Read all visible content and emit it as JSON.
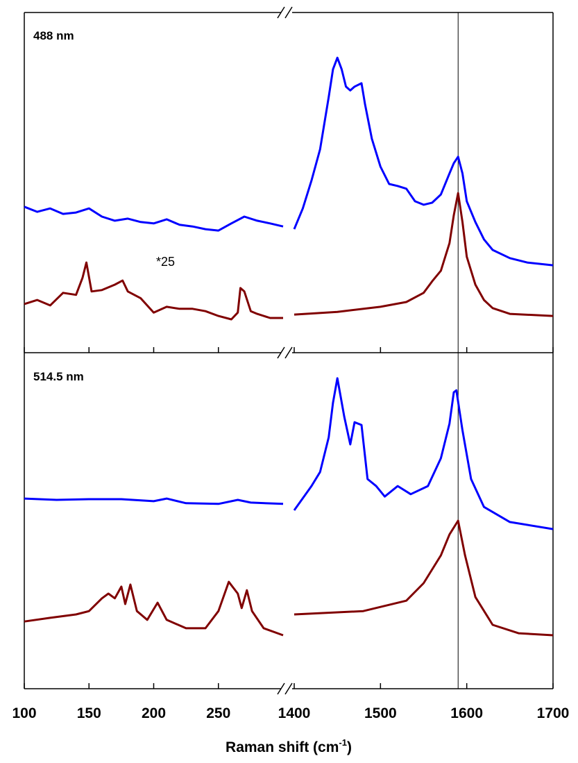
{
  "chart_data": {
    "type": "line",
    "x_segments": [
      {
        "xlim": [
          100,
          300
        ],
        "xticks": [
          100,
          150,
          200,
          250
        ]
      },
      {
        "xlim": [
          1400,
          1700
        ],
        "xticks": [
          1400,
          1500,
          1600,
          1700
        ]
      }
    ],
    "xlabel_parts": [
      "Raman shift (cm",
      "-1",
      ")"
    ],
    "reference_line_x": 1590,
    "panels": [
      {
        "label": "488 nm",
        "annotation": "*25",
        "ylim": [
          0,
          100
        ],
        "series": [
          {
            "color": "#0000ff",
            "x": [
              100,
              110,
              120,
              130,
              140,
              150,
              160,
              170,
              180,
              190,
              200,
              210,
              220,
              230,
              240,
              250,
              260,
              270,
              280,
              290,
              300
            ],
            "values": [
              42.9,
              41.4,
              42.4,
              40.8,
              41.2,
              42.4,
              40,
              38.8,
              39.4,
              38.4,
              38,
              39.2,
              37.6,
              37.1,
              36.3,
              35.9,
              38,
              40,
              38.8,
              38,
              37.1
            ]
          },
          {
            "color": "#800000",
            "x": [
              100,
              110,
              120,
              130,
              140,
              145,
              148,
              152,
              160,
              170,
              176,
              180,
              190,
              200,
              210,
              220,
              230,
              240,
              250,
              260,
              265,
              267,
              270,
              275,
              280,
              290,
              300
            ],
            "values": [
              14.3,
              15.5,
              13.9,
              17.6,
              17,
              22,
              26.5,
              18,
              18.4,
              20,
              21.2,
              18,
              16,
              11.8,
              13.5,
              12.9,
              12.9,
              12.2,
              10.8,
              9.8,
              11.8,
              19,
              18,
              12.2,
              11.4,
              10.2,
              10.2
            ]
          },
          {
            "color": "#0000ff",
            "x": [
              1400,
              1410,
              1420,
              1430,
              1440,
              1445,
              1450,
              1455,
              1460,
              1465,
              1470,
              1478,
              1482,
              1490,
              1500,
              1510,
              1520,
              1530,
              1540,
              1550,
              1560,
              1570,
              1580,
              1585,
              1590,
              1595,
              1600,
              1610,
              1620,
              1630,
              1650,
              1670,
              1700
            ],
            "values": [
              36.3,
              42.4,
              50.6,
              59.8,
              75.1,
              83.3,
              86.7,
              83.3,
              78.2,
              77.1,
              78.2,
              79.2,
              73.1,
              62.9,
              54.7,
              49.6,
              49,
              48.2,
              44.5,
              43.5,
              44.1,
              46.5,
              52.7,
              55.7,
              57.6,
              52.7,
              44.5,
              38.4,
              33.3,
              30.2,
              27.8,
              26.5,
              25.7
            ]
          },
          {
            "color": "#800000",
            "x": [
              1400,
              1450,
              1500,
              1530,
              1550,
              1560,
              1570,
              1580,
              1585,
              1590,
              1595,
              1600,
              1610,
              1620,
              1630,
              1650,
              1700
            ],
            "values": [
              11.2,
              12,
              13.5,
              14.9,
              17.6,
              21,
              24.1,
              32.2,
              40.4,
              46.9,
              38.4,
              28.2,
              20,
              15.5,
              13.1,
              11.4,
              10.8
            ]
          }
        ]
      },
      {
        "label": "514.5 nm",
        "ylim": [
          0,
          100
        ],
        "series": [
          {
            "color": "#0000ff",
            "x": [
              100,
              125,
              150,
              175,
              200,
              210,
              225,
              250,
              265,
              275,
              300
            ],
            "values": [
              56.6,
              56.2,
              56.4,
              56.4,
              55.8,
              56.6,
              55.2,
              55,
              56.2,
              55.4,
              55
            ]
          },
          {
            "color": "#800000",
            "x": [
              100,
              120,
              140,
              150,
              160,
              165,
              170,
              175,
              178,
              182,
              187,
              195,
              203,
              210,
              225,
              240,
              250,
              258,
              265,
              268,
              272,
              276,
              285,
              300
            ],
            "values": [
              20,
              21.1,
              22.1,
              23.1,
              26.9,
              28.3,
              26.9,
              30.4,
              25.2,
              31,
              23.1,
              20.5,
              25.6,
              20.5,
              18,
              18,
              23.1,
              31.8,
              28.3,
              24,
              29.3,
              23.1,
              18,
              15.9
            ]
          },
          {
            "color": "#0000ff",
            "x": [
              1400,
              1420,
              1430,
              1440,
              1445,
              1450,
              1458,
              1465,
              1470,
              1478,
              1485,
              1495,
              1505,
              1520,
              1535,
              1555,
              1570,
              1580,
              1585,
              1588,
              1595,
              1605,
              1620,
              1650,
              1700
            ],
            "values": [
              53.1,
              60.3,
              64.5,
              74.8,
              85.1,
              92.4,
              81,
              72.7,
              79.3,
              78.5,
              62.4,
              60.3,
              57.2,
              60.3,
              57.9,
              60.3,
              68.6,
              78.9,
              88.2,
              88.8,
              76.9,
              62.4,
              54.1,
              49.6,
              47.5
            ]
          },
          {
            "color": "#800000",
            "x": [
              1400,
              1480,
              1530,
              1550,
              1570,
              1580,
              1590,
              1598,
              1610,
              1630,
              1660,
              1700
            ],
            "values": [
              22.1,
              23.1,
              26.2,
              31.4,
              39.7,
              45.9,
              50,
              39.7,
              27.3,
              19,
              16.5,
              15.9
            ]
          }
        ]
      }
    ]
  }
}
